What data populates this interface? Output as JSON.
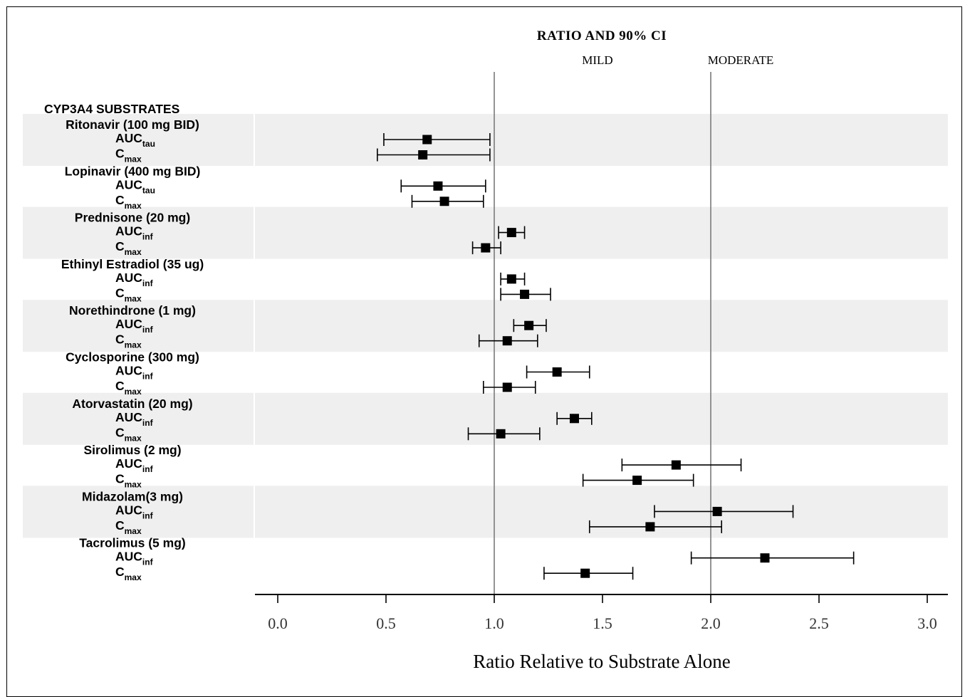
{
  "chart_data": {
    "type": "forest",
    "title": "RATIO AND 90% CI",
    "xlabel": "Ratio Relative to Substrate Alone",
    "xlim": [
      -0.1,
      3.1
    ],
    "xticks": [
      0.0,
      0.5,
      1.0,
      1.5,
      2.0,
      2.5,
      3.0
    ],
    "tick_labels": [
      "0.0",
      "0.5",
      "1.0",
      "1.5",
      "2.0",
      "2.5",
      "3.0"
    ],
    "reference_lines": [
      {
        "x": 1.0,
        "label": "MILD"
      },
      {
        "x": 2.0,
        "label": "MODERATE"
      }
    ],
    "section_header": "CYP3A4 SUBSTRATES",
    "groups": [
      {
        "name": "Ritonavir (100 mg BID)",
        "rows": [
          {
            "base": "AUC",
            "sub": "tau",
            "estimate": 0.69,
            "lower": 0.49,
            "upper": 0.98
          },
          {
            "base": "C",
            "sub": "max",
            "estimate": 0.67,
            "lower": 0.46,
            "upper": 0.98
          }
        ]
      },
      {
        "name": "Lopinavir (400 mg BID)",
        "rows": [
          {
            "base": "AUC",
            "sub": "tau",
            "estimate": 0.74,
            "lower": 0.57,
            "upper": 0.96
          },
          {
            "base": "C",
            "sub": "max",
            "estimate": 0.77,
            "lower": 0.62,
            "upper": 0.95
          }
        ]
      },
      {
        "name": "Prednisone (20 mg)",
        "rows": [
          {
            "base": "AUC",
            "sub": "inf",
            "estimate": 1.08,
            "lower": 1.02,
            "upper": 1.14
          },
          {
            "base": "C",
            "sub": "max",
            "estimate": 0.96,
            "lower": 0.9,
            "upper": 1.03
          }
        ]
      },
      {
        "name": "Ethinyl Estradiol (35 ug)",
        "rows": [
          {
            "base": "AUC",
            "sub": "inf",
            "estimate": 1.08,
            "lower": 1.03,
            "upper": 1.14
          },
          {
            "base": "C",
            "sub": "max",
            "estimate": 1.14,
            "lower": 1.03,
            "upper": 1.26
          }
        ]
      },
      {
        "name": "Norethindrone (1 mg)",
        "rows": [
          {
            "base": "AUC",
            "sub": "inf",
            "estimate": 1.16,
            "lower": 1.09,
            "upper": 1.24
          },
          {
            "base": "C",
            "sub": "max",
            "estimate": 1.06,
            "lower": 0.93,
            "upper": 1.2
          }
        ]
      },
      {
        "name": "Cyclosporine (300 mg)",
        "rows": [
          {
            "base": "AUC",
            "sub": "inf",
            "estimate": 1.29,
            "lower": 1.15,
            "upper": 1.44
          },
          {
            "base": "C",
            "sub": "max",
            "estimate": 1.06,
            "lower": 0.95,
            "upper": 1.19
          }
        ]
      },
      {
        "name": "Atorvastatin (20 mg)",
        "rows": [
          {
            "base": "AUC",
            "sub": "inf",
            "estimate": 1.37,
            "lower": 1.29,
            "upper": 1.45
          },
          {
            "base": "C",
            "sub": "max",
            "estimate": 1.03,
            "lower": 0.88,
            "upper": 1.21
          }
        ]
      },
      {
        "name": "Sirolimus (2 mg)",
        "rows": [
          {
            "base": "AUC",
            "sub": "inf",
            "estimate": 1.84,
            "lower": 1.59,
            "upper": 2.14
          },
          {
            "base": "C",
            "sub": "max",
            "estimate": 1.66,
            "lower": 1.41,
            "upper": 1.92
          }
        ]
      },
      {
        "name": "Midazolam(3 mg)",
        "rows": [
          {
            "base": "AUC",
            "sub": "inf",
            "estimate": 2.03,
            "lower": 1.74,
            "upper": 2.38
          },
          {
            "base": "C",
            "sub": "max",
            "estimate": 1.72,
            "lower": 1.44,
            "upper": 2.05
          }
        ]
      },
      {
        "name": "Tacrolimus (5 mg)",
        "rows": [
          {
            "base": "AUC",
            "sub": "inf",
            "estimate": 2.25,
            "lower": 1.91,
            "upper": 2.66
          },
          {
            "base": "C",
            "sub": "max",
            "estimate": 1.42,
            "lower": 1.23,
            "upper": 1.64
          }
        ]
      }
    ],
    "band_color": "#efefef",
    "reference_line_color": "#888888"
  }
}
